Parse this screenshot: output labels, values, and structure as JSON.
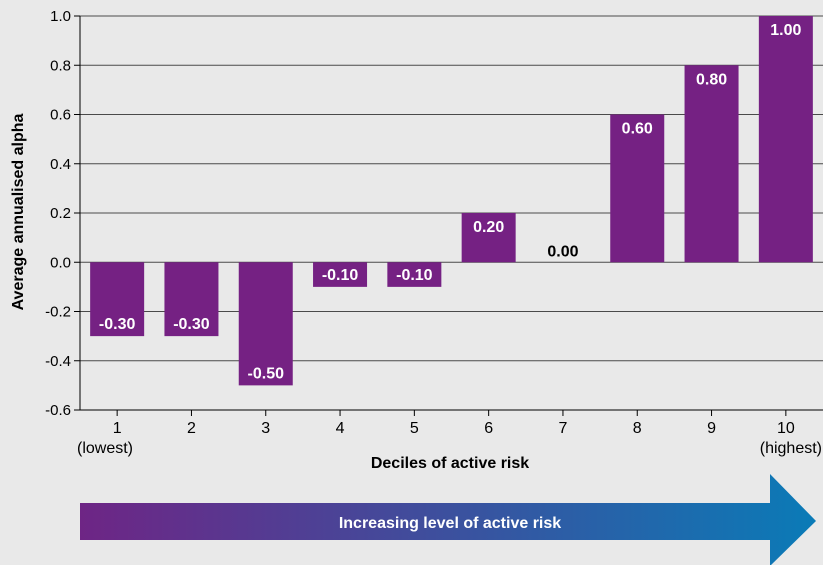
{
  "chart_data": {
    "type": "bar",
    "categories": [
      "1",
      "2",
      "3",
      "4",
      "5",
      "6",
      "7",
      "8",
      "9",
      "10"
    ],
    "category_sublabels": [
      "(lowest)",
      "",
      "",
      "",
      "",
      "",
      "",
      "",
      "",
      "(highest)"
    ],
    "values": [
      -0.3,
      -0.3,
      -0.5,
      -0.1,
      -0.1,
      0.2,
      0.0,
      0.6,
      0.8,
      1.0
    ],
    "data_labels": [
      "-0.30",
      "-0.30",
      "-0.50",
      "-0.10",
      "-0.10",
      "0.20",
      "0.00",
      "0.60",
      "0.80",
      "1.00"
    ],
    "title": "",
    "xlabel": "Deciles of active risk",
    "ylabel": "Average annualised alpha",
    "ylim": [
      -0.6,
      1.0
    ],
    "yticks": [
      "-0.6",
      "-0.4",
      "-0.2",
      "0.0",
      "0.2",
      "0.4",
      "0.6",
      "0.8",
      "1.0"
    ],
    "grid": true,
    "colors": {
      "bar": "#752183",
      "label_on_bar": "#ffffff",
      "label_off_bar": "#000000",
      "grid": "#4a4a4a"
    }
  },
  "arrow": {
    "label": "Increasing level of active risk",
    "gradient_start": "#6e2585",
    "gradient_end": "#0a7bb7"
  }
}
